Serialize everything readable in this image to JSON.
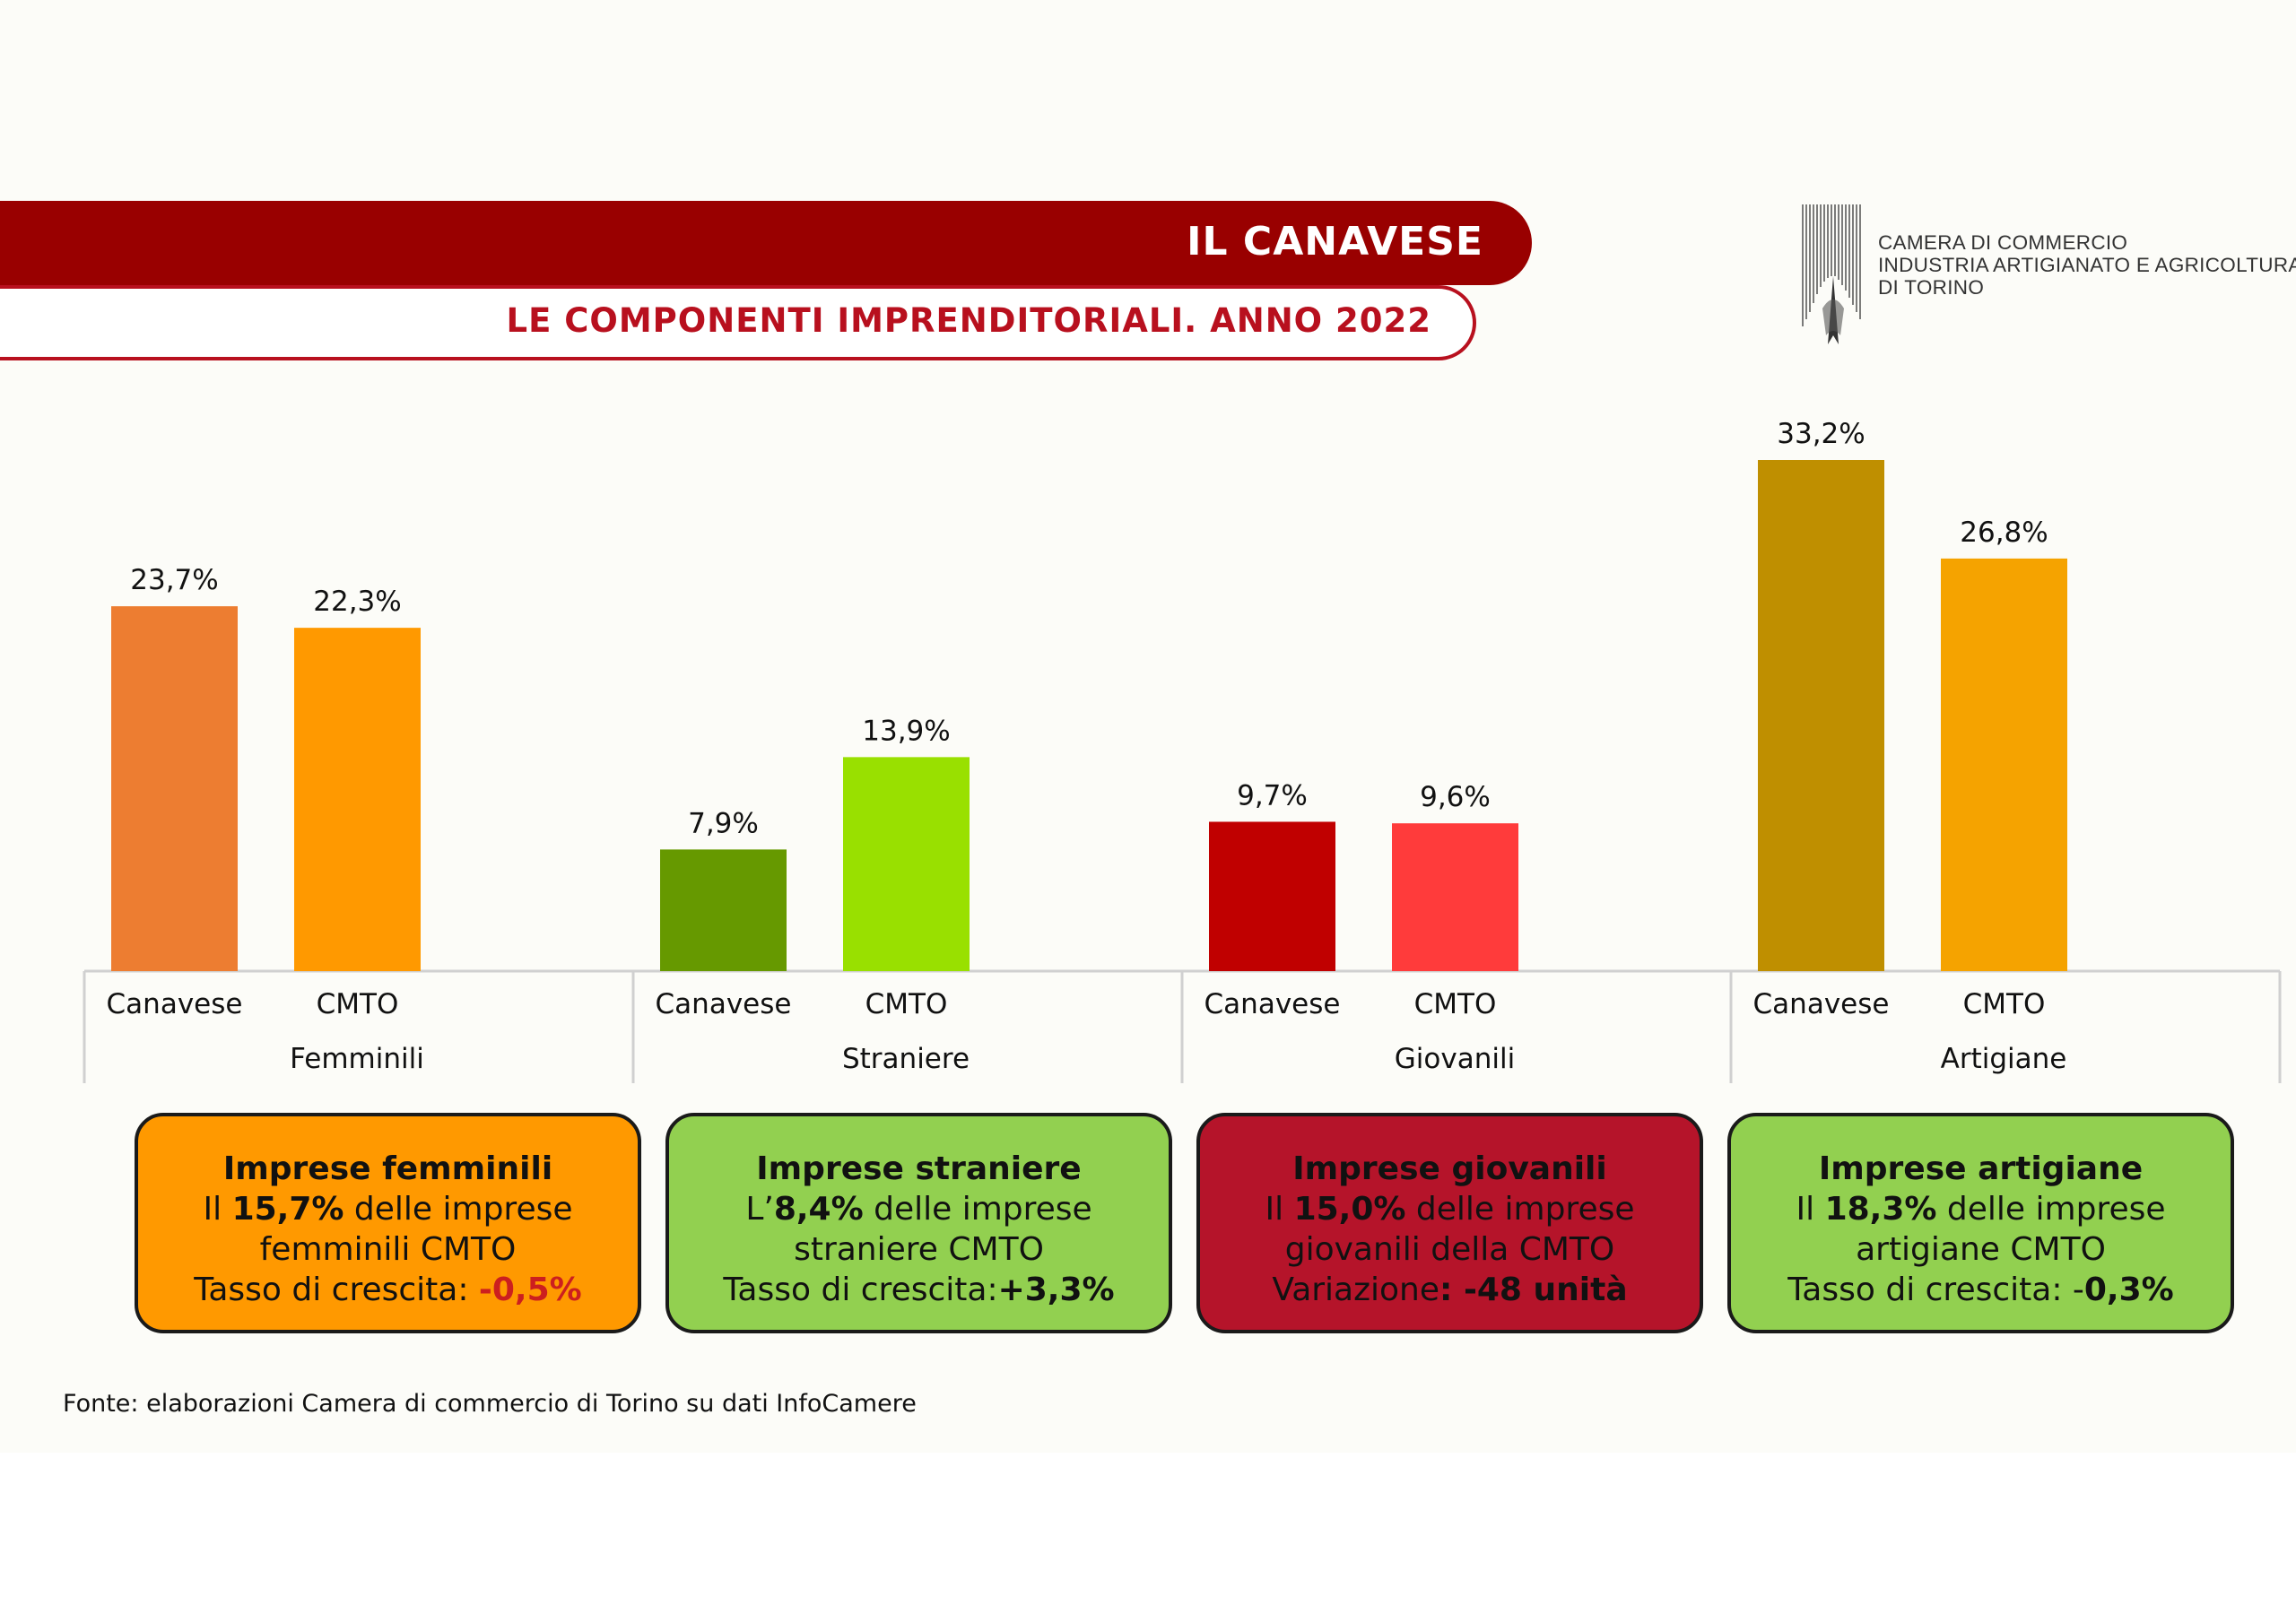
{
  "header": {
    "title": "IL CANAVESE",
    "subtitle": "LE COMPONENTI IMPRENDITORIALI. ANNO 2022"
  },
  "logo": {
    "line1": "CAMERA DI COMMERCIO",
    "line2": "INDUSTRIA ARTIGIANATO E AGRICOLTURA",
    "line3": "DI TORINO"
  },
  "chart_data": {
    "type": "bar",
    "groups": [
      "Femminili",
      "Straniere",
      "Giovanili",
      "Artigiane"
    ],
    "categories": [
      "Canavese",
      "CMTO"
    ],
    "values": [
      [
        23.7,
        22.3
      ],
      [
        7.9,
        13.9
      ],
      [
        9.7,
        9.6
      ],
      [
        33.2,
        26.8
      ]
    ],
    "value_labels": [
      [
        "23,7%",
        "22,3%"
      ],
      [
        "7,9%",
        "13,9%"
      ],
      [
        "9,7%",
        "9,6%"
      ],
      [
        "33,2%",
        "26,8%"
      ]
    ],
    "colors": [
      [
        "#ed7d31",
        "#ff9900"
      ],
      [
        "#669900",
        "#99e000"
      ],
      [
        "#c00000",
        "#ff3b3b"
      ],
      [
        "#bf8f00",
        "#f5a300"
      ]
    ],
    "axis_color": "#d0d0d0",
    "ylim": [
      0,
      33.2
    ],
    "grid": false,
    "legend": "none"
  },
  "boxes": [
    {
      "title": "Imprese femminili",
      "l1_pre": "Il ",
      "l1_bold": "15,7%",
      "l1_post": " delle imprese",
      "l2": "femminili CMTO",
      "l3_pre": "Tasso di crescita: ",
      "l3_bold": "-0,5%",
      "bg": "#ff9900",
      "text": "#111111"
    },
    {
      "title": "Imprese straniere",
      "l1_pre": "L’",
      "l1_bold": "8,4%",
      "l1_post": " delle imprese",
      "l2": "straniere CMTO",
      "l3_pre": "Tasso di crescita:",
      "l3_bold": "+3,3%",
      "bg": "#92d050",
      "text": "#111111"
    },
    {
      "title": "Imprese giovanili",
      "l1_pre": "Il ",
      "l1_bold": "15,0%",
      "l1_post": " delle imprese",
      "l2": "giovanili della CMTO",
      "l3_pre": "Variazione",
      "l3_bold": ": -48 unità",
      "bg": "#b5142a",
      "text": "#111111"
    },
    {
      "title": "Imprese artigiane",
      "l1_pre": "Il ",
      "l1_bold": "18,3%",
      "l1_post": " delle imprese",
      "l2": "artigiane CMTO",
      "l3_pre": "Tasso di crescita: -",
      "l3_bold": "0,3%",
      "bg": "#92d050",
      "text": "#111111"
    }
  ],
  "source": "Fonte: elaborazioni Camera di commercio di Torino su dati InfoCamere"
}
